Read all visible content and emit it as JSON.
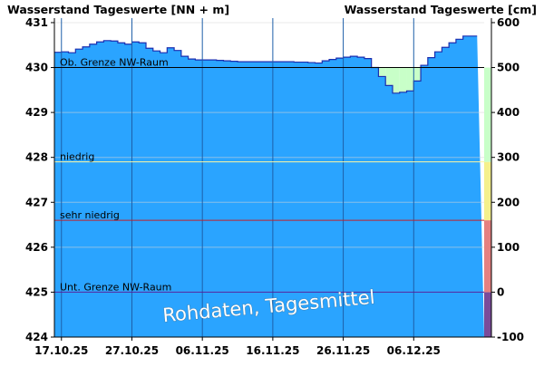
{
  "chart_data": {
    "type": "area",
    "left_axis_title": "Wasserstand Tageswerte [NN + m]",
    "right_axis_title": "Wasserstand Tageswerte [cm]",
    "y_left_ticks": [
      "431",
      "430",
      "429",
      "428",
      "427",
      "426",
      "425",
      "424"
    ],
    "y_right_ticks": [
      "600",
      "500",
      "400",
      "300",
      "200",
      "100",
      "0",
      "-100"
    ],
    "ylim_left": [
      424,
      431.1
    ],
    "ylim_right": [
      -100,
      610
    ],
    "x_ticks": [
      "17.10.25",
      "27.10.25",
      "06.11.25",
      "16.11.25",
      "26.11.25",
      "06.12.25"
    ],
    "x_range": [
      "2025-10-16",
      "2025-12-15"
    ],
    "series": [
      {
        "x": [
          "2025-10-16",
          "2025-10-17",
          "2025-10-18",
          "2025-10-19",
          "2025-10-20",
          "2025-10-21",
          "2025-10-22",
          "2025-10-23",
          "2025-10-24",
          "2025-10-25",
          "2025-10-26",
          "2025-10-27",
          "2025-10-28",
          "2025-10-29",
          "2025-10-30",
          "2025-10-31",
          "2025-11-01",
          "2025-11-02",
          "2025-11-03",
          "2025-11-04",
          "2025-11-05",
          "2025-11-06",
          "2025-11-07",
          "2025-11-08",
          "2025-11-09",
          "2025-11-10",
          "2025-11-11",
          "2025-11-12",
          "2025-11-13",
          "2025-11-14",
          "2025-11-15",
          "2025-11-16",
          "2025-11-17",
          "2025-11-18",
          "2025-11-19",
          "2025-11-20",
          "2025-11-21",
          "2025-11-22",
          "2025-11-23",
          "2025-11-24",
          "2025-11-25",
          "2025-11-26",
          "2025-11-27",
          "2025-11-28",
          "2025-11-29",
          "2025-11-30",
          "2025-12-01",
          "2025-12-02",
          "2025-12-03",
          "2025-12-04",
          "2025-12-05",
          "2025-12-06",
          "2025-12-07",
          "2025-12-08",
          "2025-12-09",
          "2025-12-10",
          "2025-12-11",
          "2025-12-12",
          "2025-12-13",
          "2025-12-14"
        ],
        "y": [
          430.34,
          430.35,
          430.33,
          430.41,
          430.46,
          430.52,
          430.57,
          430.6,
          430.59,
          430.55,
          430.52,
          430.57,
          430.55,
          430.43,
          430.37,
          430.33,
          430.44,
          430.38,
          430.25,
          430.19,
          430.17,
          430.17,
          430.17,
          430.16,
          430.15,
          430.14,
          430.13,
          430.13,
          430.13,
          430.13,
          430.13,
          430.13,
          430.13,
          430.13,
          430.12,
          430.12,
          430.11,
          430.1,
          430.15,
          430.18,
          430.21,
          430.23,
          430.25,
          430.23,
          430.2,
          430.0,
          429.8,
          429.6,
          429.43,
          429.45,
          429.48,
          429.7,
          430.05,
          430.22,
          430.35,
          430.45,
          430.55,
          430.63,
          430.7,
          430.7
        ]
      }
    ],
    "thresholds": [
      {
        "label": "Ob. Grenze NW-Raum",
        "value": 430.0,
        "color": "#000000"
      },
      {
        "label": "niedrig",
        "value": 427.9,
        "color": "#fff6a0"
      },
      {
        "label": "sehr niedrig",
        "value": 426.6,
        "color": "#c0202a"
      },
      {
        "label": "Unt. Grenze NW-Raum",
        "value": 425.0,
        "color": "#4b1fa0"
      }
    ],
    "bands": [
      {
        "from": 424,
        "to": 425.0,
        "color": "#7a4b9a"
      },
      {
        "from": 425.0,
        "to": 426.6,
        "color": "#e58080"
      },
      {
        "from": 426.6,
        "to": 427.9,
        "color": "#f5f08c"
      },
      {
        "from": 427.9,
        "to": 430.0,
        "color": "#c8ffc8"
      }
    ],
    "fill_color": "#2aa4ff",
    "below_limit_fill_color": "#c8ffc8",
    "line_color": "#1b2eb0",
    "grid": true,
    "watermark": "Rohdaten, Tagesmittel"
  }
}
